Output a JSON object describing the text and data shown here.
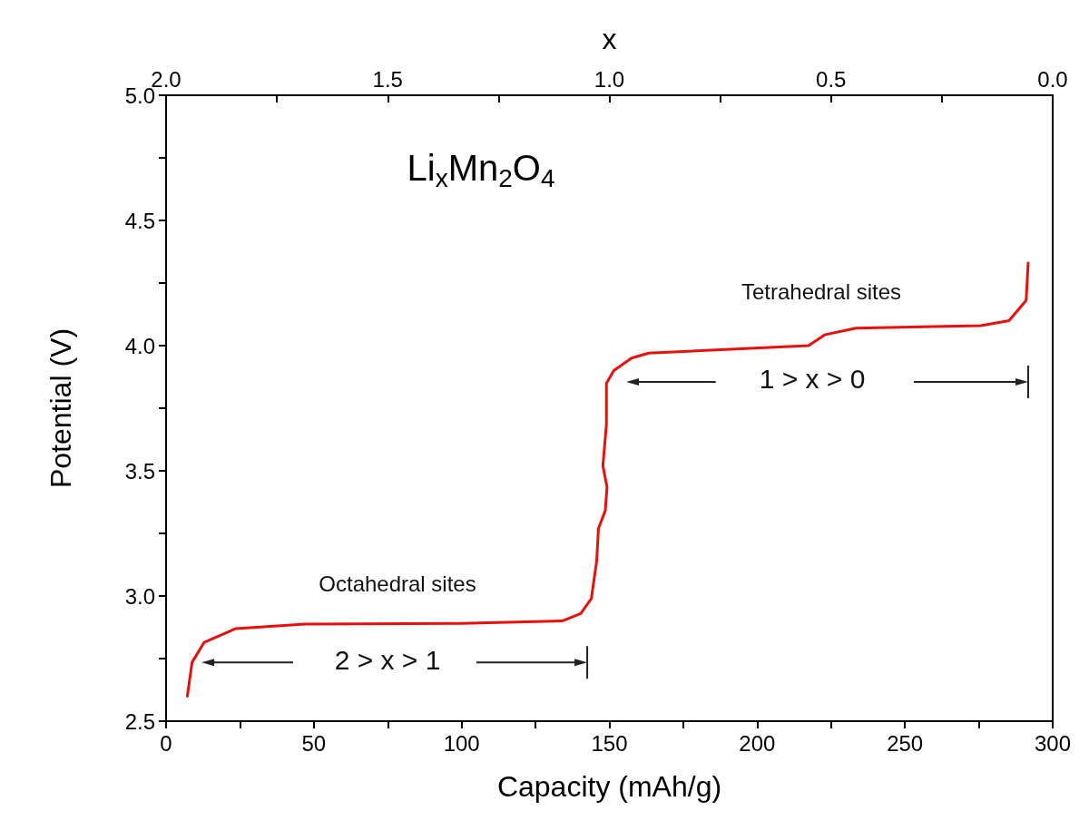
{
  "chart_data": {
    "type": "line",
    "title": "Li$_{x}$Mn$_{2}$O$_{4}$",
    "xlabel": "Capacity (mAh/g)",
    "ylabel": "Potential (V)",
    "x2label": "x",
    "series": [
      {
        "color": "#e8100c",
        "x": [
          7.2,
          8.8,
          12.9,
          23.6,
          47,
          98.3,
          134,
          140.3,
          143.9,
          145.7,
          146.3,
          148.6,
          149.2,
          147.8,
          149,
          149,
          151.5,
          157.5,
          163.3,
          217.4,
          222.8,
          233.4,
          275.7,
          285.2,
          291,
          291.7
        ],
        "values": [
          2.6,
          2.735,
          2.815,
          2.87,
          2.888,
          2.89,
          2.9,
          2.93,
          2.99,
          3.14,
          3.27,
          3.34,
          3.435,
          3.52,
          3.685,
          3.85,
          3.9,
          3.95,
          3.97,
          4.0,
          4.043,
          4.07,
          4.08,
          4.1,
          4.18,
          4.33
        ]
      }
    ],
    "xlim": [
      0,
      300
    ],
    "xticks": [
      0,
      {
        "value": 25,
        "label": null
      },
      50,
      {
        "value": 75,
        "label": null
      },
      100,
      {
        "value": 125,
        "label": null
      },
      150,
      {
        "value": 175,
        "label": null
      },
      200,
      {
        "value": 225,
        "label": null
      },
      250,
      {
        "value": 275,
        "label": null
      },
      300
    ],
    "ylim": [
      2.5,
      5.0
    ],
    "yticks": [
      {
        "value": 2.5,
        "label": "2.5"
      },
      {
        "value": 2.75,
        "label": null
      },
      {
        "value": 3.0,
        "label": "3.0"
      },
      {
        "value": 3.25,
        "label": null
      },
      {
        "value": 3.5,
        "label": "3.5"
      },
      {
        "value": 3.75,
        "label": null
      },
      {
        "value": 4.0,
        "label": "4.0"
      },
      {
        "value": 4.25,
        "label": null
      },
      {
        "value": 4.5,
        "label": "4.5"
      },
      {
        "value": 4.75,
        "label": null
      },
      {
        "value": 5.0,
        "label": "5.0"
      }
    ],
    "x2lim": [
      2.0,
      0.0
    ],
    "x2ticks": [
      {
        "value": 2.0,
        "label": "2.0"
      },
      {
        "value": 1.75,
        "label": null
      },
      {
        "value": 1.5,
        "label": "1.5"
      },
      {
        "value": 1.25,
        "label": null
      },
      {
        "value": 1.0,
        "label": "1.0"
      },
      {
        "value": 0.75,
        "label": null
      },
      {
        "value": 0.5,
        "label": "0.5"
      },
      {
        "value": 0.25,
        "label": null
      },
      {
        "value": 0.0,
        "label": "0.0"
      }
    ],
    "annotations": [
      "Octahedral sites",
      "2 > x > 1",
      "Tetrahedral sites",
      "1 > x > 0"
    ],
    "grid": false,
    "marker": "none",
    "line_style": "solid"
  }
}
